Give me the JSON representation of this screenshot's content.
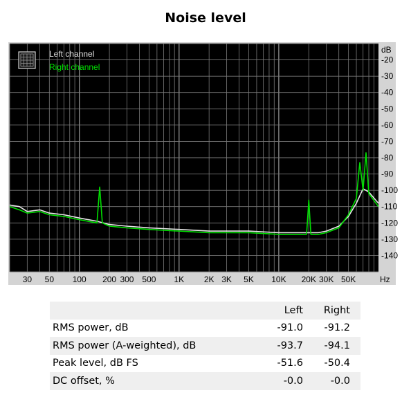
{
  "title": "Noise level",
  "chart_data": {
    "type": "line",
    "title": "Noise level",
    "xscale": "log",
    "xunit": "Hz",
    "yunit": "dB",
    "xlim": [
      20,
      100000
    ],
    "ylim": [
      -150,
      -10
    ],
    "xticks": [
      {
        "value": 30,
        "label": "30"
      },
      {
        "value": 50,
        "label": "50"
      },
      {
        "value": 100,
        "label": "100"
      },
      {
        "value": 200,
        "label": "200"
      },
      {
        "value": 300,
        "label": "300"
      },
      {
        "value": 500,
        "label": "500"
      },
      {
        "value": 1000,
        "label": "1K"
      },
      {
        "value": 2000,
        "label": "2K"
      },
      {
        "value": 3000,
        "label": "3K"
      },
      {
        "value": 5000,
        "label": "5K"
      },
      {
        "value": 10000,
        "label": "10K"
      },
      {
        "value": 20000,
        "label": "20K"
      },
      {
        "value": 30000,
        "label": "30K"
      },
      {
        "value": 50000,
        "label": "50K"
      }
    ],
    "yticks": [
      -20,
      -30,
      -40,
      -50,
      -60,
      -70,
      -80,
      -90,
      -100,
      -110,
      -120,
      -130,
      -140
    ],
    "grid": true,
    "legend": "top-left",
    "background": "#000000",
    "series": [
      {
        "name": "Left channel",
        "color": "#e8e8e8",
        "x": [
          20,
          25,
          30,
          40,
          50,
          70,
          100,
          150,
          200,
          300,
          500,
          1000,
          2000,
          5000,
          10000,
          19000,
          25000,
          30000,
          40000,
          50000,
          60000,
          70000,
          80000,
          100000
        ],
        "y": [
          -109,
          -110,
          -113,
          -112,
          -114,
          -115,
          -117,
          -119,
          -121,
          -122,
          -123,
          -124,
          -125,
          -125,
          -126,
          -126,
          -126,
          -125,
          -122,
          -116,
          -108,
          -99,
          -101,
          -108
        ]
      },
      {
        "name": "Right channel",
        "color": "#00e000",
        "x": [
          20,
          25,
          30,
          40,
          50,
          70,
          100,
          150,
          160,
          170,
          200,
          300,
          500,
          1000,
          2000,
          5000,
          10000,
          19000,
          20000,
          21000,
          25000,
          30000,
          40000,
          50000,
          60000,
          65000,
          70000,
          75000,
          80000,
          100000
        ],
        "y": [
          -110,
          -112,
          -114,
          -113,
          -115,
          -116,
          -118,
          -120,
          -98,
          -120,
          -122,
          -123,
          -124,
          -125,
          -126,
          -126,
          -127,
          -127,
          -106,
          -127,
          -127,
          -126,
          -123,
          -115,
          -105,
          -83,
          -100,
          -77,
          -102,
          -110
        ]
      }
    ]
  },
  "legend": {
    "left": "Left channel",
    "right": "Right channel"
  },
  "table": {
    "headers": [
      "",
      "Left",
      "Right"
    ],
    "rows": [
      {
        "label": "RMS power, dB",
        "left": "-91.0",
        "right": "-91.2"
      },
      {
        "label": "RMS power (A-weighted), dB",
        "left": "-93.7",
        "right": "-94.1"
      },
      {
        "label": "Peak level, dB FS",
        "left": "-51.6",
        "right": "-50.4"
      },
      {
        "label": "DC offset, %",
        "left": "-0.0",
        "right": "-0.0"
      }
    ]
  }
}
